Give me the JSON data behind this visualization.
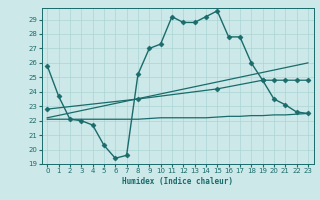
{
  "xlabel": "Humidex (Indice chaleur)",
  "bg_color": "#cce8e8",
  "grid_color": "#aad4d4",
  "line_color": "#1a6b6b",
  "xlim": [
    -0.5,
    23.5
  ],
  "ylim": [
    19,
    29.8
  ],
  "yticks": [
    19,
    20,
    21,
    22,
    23,
    24,
    25,
    26,
    27,
    28,
    29
  ],
  "xticks": [
    0,
    1,
    2,
    3,
    4,
    5,
    6,
    7,
    8,
    9,
    10,
    11,
    12,
    13,
    14,
    15,
    16,
    17,
    18,
    19,
    20,
    21,
    22,
    23
  ],
  "series": [
    {
      "x": [
        0,
        1,
        2,
        3,
        4,
        5,
        6,
        7,
        8,
        9,
        10,
        11,
        12,
        13,
        14,
        15,
        16,
        17,
        18,
        19,
        20,
        21,
        22,
        23
      ],
      "y": [
        25.8,
        23.7,
        22.1,
        22.0,
        21.7,
        20.3,
        19.4,
        19.6,
        25.2,
        27.0,
        27.3,
        29.2,
        28.8,
        28.8,
        29.2,
        29.6,
        27.8,
        27.8,
        26.0,
        24.8,
        23.5,
        23.1,
        22.6,
        22.5
      ],
      "marker": "D",
      "markersize": 2.5,
      "linewidth": 1.0
    },
    {
      "x": [
        0,
        1,
        2,
        3,
        4,
        5,
        6,
        7,
        8,
        9,
        10,
        11,
        12,
        13,
        14,
        15,
        16,
        17,
        18,
        19,
        20,
        21,
        22,
        23
      ],
      "y": [
        22.1,
        22.1,
        22.1,
        22.1,
        22.1,
        22.1,
        22.1,
        22.1,
        22.1,
        22.15,
        22.2,
        22.2,
        22.2,
        22.2,
        22.2,
        22.25,
        22.3,
        22.3,
        22.35,
        22.35,
        22.4,
        22.4,
        22.45,
        22.5
      ],
      "marker": null,
      "markersize": 0,
      "linewidth": 0.9
    },
    {
      "x": [
        0,
        23
      ],
      "y": [
        22.2,
        26.0
      ],
      "marker": null,
      "markersize": 0,
      "linewidth": 0.9
    },
    {
      "x": [
        0,
        8,
        15,
        19,
        20,
        21,
        22,
        23
      ],
      "y": [
        22.8,
        23.5,
        24.2,
        24.8,
        24.8,
        24.8,
        24.8,
        24.8
      ],
      "marker": "D",
      "markersize": 2.5,
      "linewidth": 0.9
    }
  ]
}
